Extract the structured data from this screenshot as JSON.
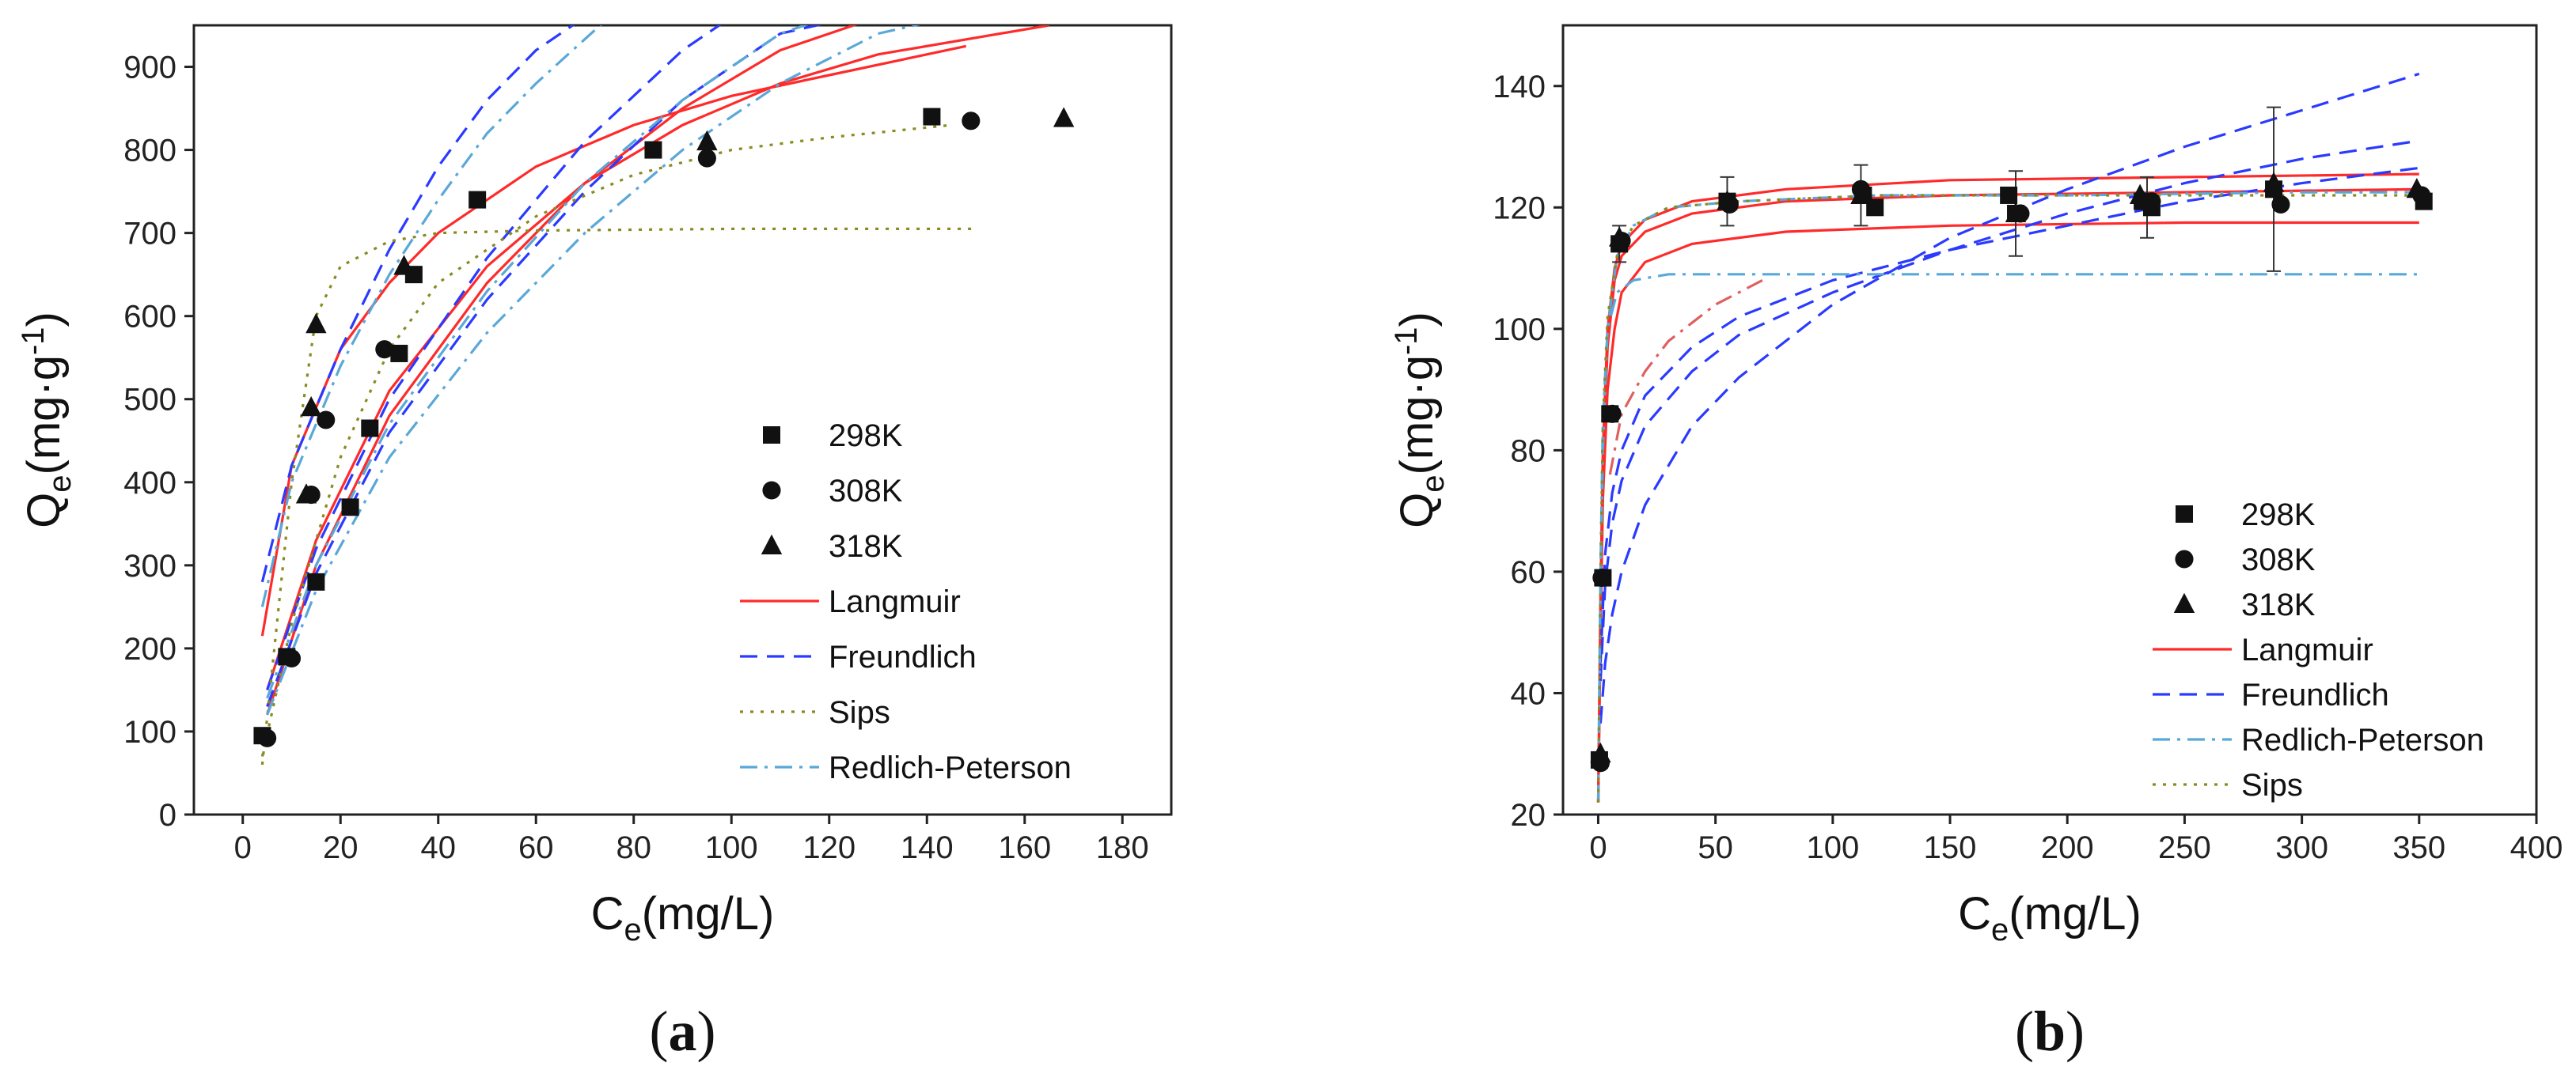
{
  "chart_data": [
    {
      "type": "scatter",
      "panel_label": "(a)",
      "panel_label_parts": [
        "(",
        "a",
        ")"
      ],
      "xlabel": "Ce(mg/L)",
      "xlabel_parts": [
        "C",
        "e",
        "(mg/L)"
      ],
      "ylabel": "Qe(mg·g-1)",
      "ylabel_parts": [
        "Q",
        "e",
        "(mg·g",
        "-1",
        ")"
      ],
      "xlim": [
        -10,
        190
      ],
      "ylim": [
        0,
        950
      ],
      "xticks": [
        0,
        20,
        40,
        60,
        80,
        100,
        120,
        140,
        160,
        180
      ],
      "yticks": [
        0,
        100,
        200,
        300,
        400,
        500,
        600,
        700,
        800,
        900
      ],
      "legend_position": "center-right",
      "legend": [
        "298K",
        "308K",
        "318K",
        "Langmuir",
        "Freundlich",
        "Sips",
        "Redlich-Peterson"
      ],
      "series": [
        {
          "name": "298K",
          "marker": "square",
          "x": [
            4,
            9,
            15,
            22,
            26,
            32,
            35,
            48,
            84,
            141
          ],
          "y": [
            95,
            190,
            280,
            370,
            465,
            555,
            650,
            740,
            800,
            840
          ]
        },
        {
          "name": "308K",
          "marker": "circle",
          "x": [
            5,
            10,
            14,
            17,
            29,
            95,
            149
          ],
          "y": [
            92,
            188,
            385,
            475,
            560,
            790,
            835
          ]
        },
        {
          "name": "318K",
          "marker": "triangle",
          "x": [
            13,
            15,
            14,
            33,
            95,
            168
          ],
          "y": [
            385,
            590,
            490,
            660,
            810,
            838
          ]
        }
      ],
      "curves": [
        {
          "model": "Langmuir",
          "style": "solid",
          "color": "#ff2a2a",
          "x": [
            4,
            10,
            20,
            30,
            40,
            60,
            80,
            100,
            120,
            148
          ],
          "y": [
            215,
            420,
            560,
            640,
            700,
            780,
            830,
            865,
            890,
            925
          ]
        },
        {
          "model": "Langmuir",
          "style": "solid",
          "color": "#ff2a2a",
          "x": [
            5,
            15,
            30,
            50,
            70,
            90,
            110,
            130,
            165
          ],
          "y": [
            150,
            330,
            510,
            660,
            760,
            830,
            880,
            915,
            950
          ]
        },
        {
          "model": "Langmuir",
          "style": "solid",
          "color": "#ff2a2a",
          "x": [
            5,
            15,
            30,
            50,
            70,
            90,
            110,
            130
          ],
          "y": [
            120,
            300,
            480,
            640,
            760,
            850,
            920,
            960
          ]
        },
        {
          "model": "Freundlich",
          "style": "dashed",
          "color": "#2a3aff",
          "x": [
            4,
            10,
            20,
            30,
            40,
            50,
            60,
            70
          ],
          "y": [
            280,
            420,
            560,
            680,
            780,
            860,
            920,
            960
          ]
        },
        {
          "model": "Freundlich",
          "style": "dashed",
          "color": "#2a3aff",
          "x": [
            5,
            15,
            30,
            50,
            70,
            90,
            100
          ],
          "y": [
            150,
            320,
            500,
            670,
            810,
            920,
            960
          ]
        },
        {
          "model": "Freundlich",
          "style": "dashed",
          "color": "#2a3aff",
          "x": [
            5,
            15,
            30,
            50,
            70,
            90,
            110,
            125
          ],
          "y": [
            130,
            290,
            460,
            620,
            750,
            860,
            940,
            960
          ]
        },
        {
          "model": "Sips",
          "style": "dotted",
          "color": "#8a8a20",
          "x": [
            4,
            10,
            15,
            20,
            30,
            40,
            60,
            100,
            150
          ],
          "y": [
            60,
            400,
            600,
            660,
            690,
            700,
            703,
            705,
            705
          ]
        },
        {
          "model": "Sips",
          "style": "dotted",
          "color": "#8a8a20",
          "x": [
            4,
            10,
            20,
            30,
            40,
            60,
            80,
            100,
            120,
            145
          ],
          "y": [
            70,
            230,
            430,
            560,
            640,
            720,
            770,
            800,
            815,
            830
          ]
        },
        {
          "model": "Redlich-Peterson",
          "style": "dashdot",
          "color": "#5aa8d8",
          "x": [
            4,
            10,
            20,
            30,
            40,
            50,
            60,
            75
          ],
          "y": [
            250,
            400,
            540,
            650,
            740,
            820,
            880,
            960
          ]
        },
        {
          "model": "Redlich-Peterson",
          "style": "dashdot",
          "color": "#5aa8d8",
          "x": [
            5,
            15,
            30,
            50,
            70,
            90,
            110,
            120
          ],
          "y": [
            140,
            300,
            470,
            630,
            760,
            860,
            940,
            960
          ]
        },
        {
          "model": "Redlich-Peterson",
          "style": "dashdot",
          "color": "#5aa8d8",
          "x": [
            5,
            15,
            30,
            50,
            70,
            90,
            110,
            130,
            145
          ],
          "y": [
            120,
            270,
            430,
            580,
            700,
            800,
            880,
            940,
            960
          ]
        }
      ]
    },
    {
      "type": "scatter",
      "panel_label": "(b)",
      "panel_label_parts": [
        "(",
        "b",
        ")"
      ],
      "xlabel": "Ce(mg/L)",
      "xlabel_parts": [
        "C",
        "e",
        "(mg/L)"
      ],
      "ylabel": "Qe(mg·g-1)",
      "ylabel_parts": [
        "Q",
        "e",
        "(mg·g",
        "-1",
        ")"
      ],
      "xlim": [
        -15,
        400
      ],
      "ylim": [
        20,
        150
      ],
      "xticks": [
        0,
        50,
        100,
        150,
        200,
        250,
        300,
        350,
        400
      ],
      "yticks": [
        20,
        40,
        60,
        80,
        100,
        120,
        140
      ],
      "legend_position": "bottom-right",
      "legend": [
        "298K",
        "308K",
        "318K",
        "Langmuir",
        "Freundlich",
        "Redlich-Peterson",
        "Sips"
      ],
      "series": [
        {
          "name": "298K",
          "marker": "square",
          "x": [
            0.5,
            2,
            5,
            9,
            55,
            113,
            118,
            175,
            178,
            232,
            236,
            288,
            352
          ],
          "y": [
            29,
            59,
            86,
            114,
            121,
            122,
            120,
            122,
            119,
            121,
            120,
            123,
            121
          ]
        },
        {
          "name": "308K",
          "marker": "circle",
          "x": [
            1,
            1.5,
            6,
            10,
            56,
            112,
            180,
            236,
            291,
            351
          ],
          "y": [
            28.5,
            59,
            86,
            114.5,
            120.5,
            123,
            119,
            121,
            120.5,
            122
          ]
        },
        {
          "name": "318K",
          "marker": "triangle",
          "x": [
            1,
            9,
            55,
            112,
            178,
            231,
            288,
            349
          ],
          "y": [
            30,
            115,
            121,
            122,
            119,
            122,
            124,
            123
          ]
        }
      ],
      "error_bars": [
        {
          "x": 9,
          "y": 114,
          "err": 3
        },
        {
          "x": 55,
          "y": 121,
          "err": 4
        },
        {
          "x": 112,
          "y": 122,
          "err": 5
        },
        {
          "x": 178,
          "y": 119,
          "err": 7
        },
        {
          "x": 234,
          "y": 120,
          "err": 5
        },
        {
          "x": 288,
          "y": 123,
          "err": 13.5
        }
      ],
      "curves": [
        {
          "model": "Langmuir",
          "style": "solid",
          "color": "#ff2a2a",
          "x": [
            0,
            1,
            2,
            4,
            7,
            10,
            20,
            40,
            80,
            150,
            250,
            350
          ],
          "y": [
            22,
            55,
            80,
            100,
            110,
            114,
            118,
            121,
            123,
            124.5,
            125,
            125.5
          ]
        },
        {
          "model": "Langmuir",
          "style": "solid",
          "color": "#ff2a2a",
          "x": [
            0,
            1,
            2,
            4,
            7,
            10,
            20,
            40,
            80,
            150,
            250,
            350
          ],
          "y": [
            22,
            50,
            72,
            90,
            100,
            106,
            111,
            114,
            116,
            117,
            117.5,
            117.5
          ]
        },
        {
          "model": "Langmuir",
          "style": "solid",
          "color": "#ff2a2a",
          "x": [
            0,
            1,
            2,
            4,
            7,
            10,
            20,
            40,
            80,
            150,
            250,
            350
          ],
          "y": [
            22,
            55,
            78,
            97,
            108,
            112,
            116,
            119,
            121,
            122,
            122.5,
            123
          ]
        },
        {
          "model": "Freundlich",
          "style": "dashed",
          "color": "#2a3aff",
          "x": [
            1,
            3,
            6,
            10,
            20,
            40,
            60,
            100,
            150,
            200,
            250,
            300,
            350
          ],
          "y": [
            45,
            63,
            73,
            80,
            89,
            97,
            102,
            108,
            113,
            117,
            121,
            124,
            126.5
          ]
        },
        {
          "model": "Freundlich",
          "style": "dashed",
          "color": "#2a3aff",
          "x": [
            1,
            3,
            6,
            10,
            20,
            40,
            60,
            100,
            150,
            200,
            250,
            300,
            350
          ],
          "y": [
            42,
            58,
            68,
            75,
            84,
            93,
            99,
            106,
            113,
            119,
            124,
            128,
            131
          ]
        },
        {
          "model": "Freundlich",
          "style": "dashed",
          "color": "#2a3aff",
          "x": [
            1,
            3,
            6,
            10,
            20,
            40,
            60,
            100,
            150,
            200,
            250,
            300,
            350
          ],
          "y": [
            35,
            45,
            53,
            60,
            71,
            84,
            92,
            104,
            115,
            123,
            130,
            136,
            142
          ]
        },
        {
          "model": "Redlich-Peterson",
          "style": "dashdot",
          "color": "#5aa8d8",
          "x": [
            0,
            1,
            2,
            4,
            8,
            15,
            30,
            60,
            120,
            200,
            300,
            350
          ],
          "y": [
            22,
            60,
            85,
            100,
            106,
            108,
            109,
            109,
            109,
            109,
            109,
            109
          ]
        },
        {
          "model": "Redlich-Peterson",
          "style": "dashdot",
          "color": "#5aa8d8",
          "x": [
            0,
            1,
            2,
            4,
            8,
            15,
            30,
            60,
            120,
            200,
            300,
            350
          ],
          "y": [
            22,
            58,
            80,
            100,
            112,
            117,
            120,
            121,
            122,
            122,
            122.5,
            122.5
          ]
        },
        {
          "model": "Redlich-Peterson",
          "style": "dashdot",
          "color": "#e06060",
          "x": [
            5,
            10,
            20,
            30,
            40,
            50,
            60,
            70
          ],
          "y": [
            76,
            86,
            93,
            98,
            101,
            104,
            106,
            108
          ]
        },
        {
          "model": "Sips",
          "style": "dotted",
          "color": "#8a8a20",
          "x": [
            0,
            1,
            2,
            4,
            8,
            15,
            30,
            60,
            120,
            200,
            300,
            350
          ],
          "y": [
            22,
            60,
            85,
            102,
            112,
            117,
            120,
            121,
            122,
            122,
            122,
            122
          ]
        }
      ]
    }
  ]
}
